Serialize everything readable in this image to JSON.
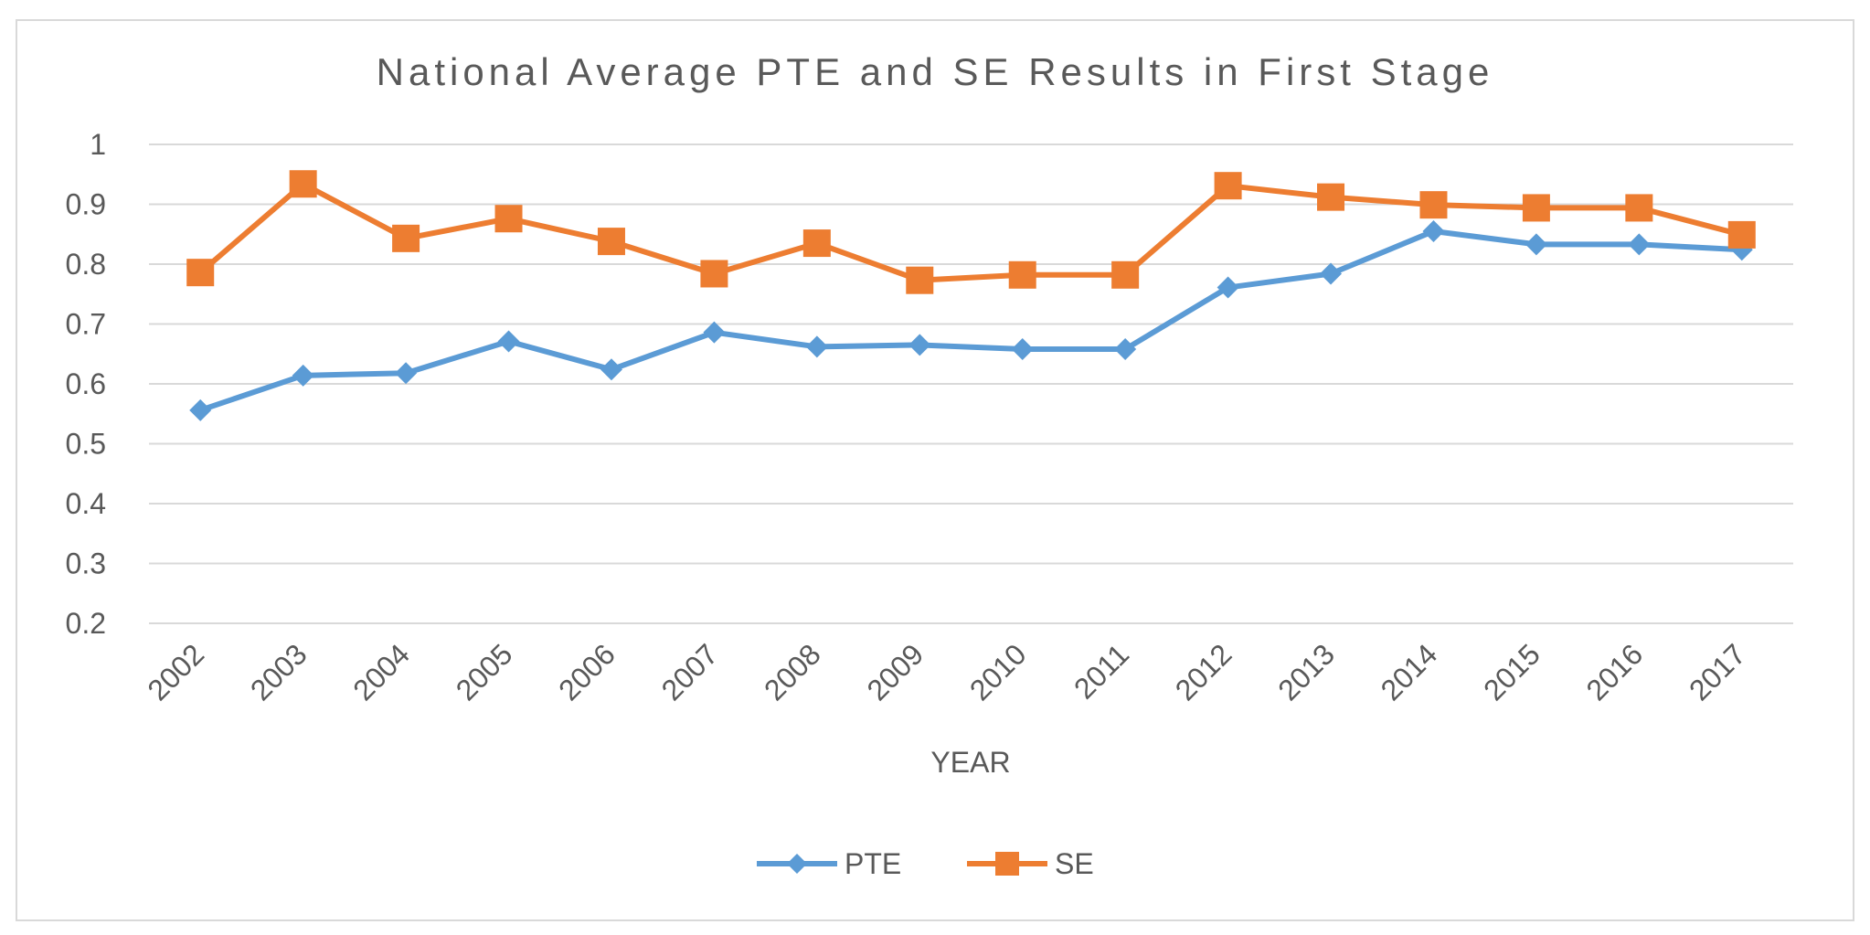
{
  "chart_data": {
    "type": "line",
    "title": "National Average PTE and SE Results in First Stage",
    "xlabel": "YEAR",
    "ylabel": "",
    "categories": [
      "2002",
      "2003",
      "2004",
      "2005",
      "2006",
      "2007",
      "2008",
      "2009",
      "2010",
      "2011",
      "2012",
      "2013",
      "2014",
      "2015",
      "2016",
      "2017"
    ],
    "ylim": [
      0.2,
      1.0
    ],
    "yticks": [
      0.2,
      0.3,
      0.4,
      0.5,
      0.6,
      0.7,
      0.8,
      0.9,
      1.0
    ],
    "ytick_labels": [
      "0.2",
      "0.3",
      "0.4",
      "0.5",
      "0.6",
      "0.7",
      "0.8",
      "0.9",
      "1"
    ],
    "grid": true,
    "legend_position": "bottom",
    "series": [
      {
        "name": "PTE",
        "color": "#5B9BD5",
        "marker": "diamond",
        "values": [
          0.556,
          0.614,
          0.618,
          0.671,
          0.624,
          0.686,
          0.662,
          0.665,
          0.658,
          0.658,
          0.761,
          0.784,
          0.855,
          0.833,
          0.833,
          0.824
        ]
      },
      {
        "name": "SE",
        "color": "#ED7D31",
        "marker": "square",
        "values": [
          0.786,
          0.934,
          0.843,
          0.876,
          0.838,
          0.784,
          0.835,
          0.773,
          0.782,
          0.782,
          0.931,
          0.912,
          0.899,
          0.894,
          0.894,
          0.849
        ]
      }
    ]
  }
}
